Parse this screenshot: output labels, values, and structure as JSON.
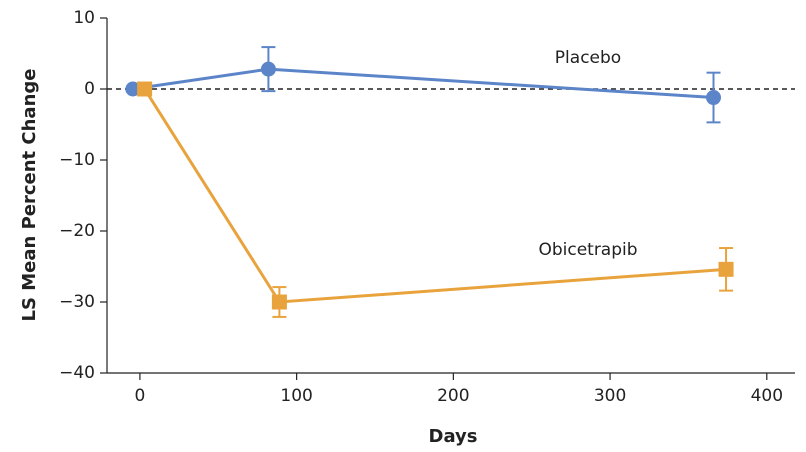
{
  "chart_data": {
    "type": "line",
    "xlabel": "Days",
    "ylabel": "LS Mean Percent Change",
    "xlim": [
      -21,
      418
    ],
    "ylim": [
      -40,
      10
    ],
    "xticks": [
      0,
      100,
      200,
      300,
      400
    ],
    "yticks": [
      10,
      0,
      {
        "value": -10,
        "label": "−10"
      },
      {
        "value": -20,
        "label": "−20"
      },
      {
        "value": -30,
        "label": "−30"
      },
      {
        "value": -40,
        "label": "−40"
      }
    ],
    "reference_line": 0,
    "series": [
      {
        "name": "Placebo",
        "color": "#5b85c8",
        "marker": "circle",
        "x": [
          -4.5,
          82,
          366
        ],
        "values": [
          0,
          2.8,
          -1.2
        ],
        "errors": [
          null,
          3.1,
          3.5
        ]
      },
      {
        "name": "Obicetrapib",
        "color": "#e8a33d",
        "marker": "square",
        "x": [
          3,
          89,
          374
        ],
        "values": [
          0,
          -30,
          -25.4
        ],
        "errors": [
          null,
          2.1,
          3.0
        ]
      }
    ]
  }
}
